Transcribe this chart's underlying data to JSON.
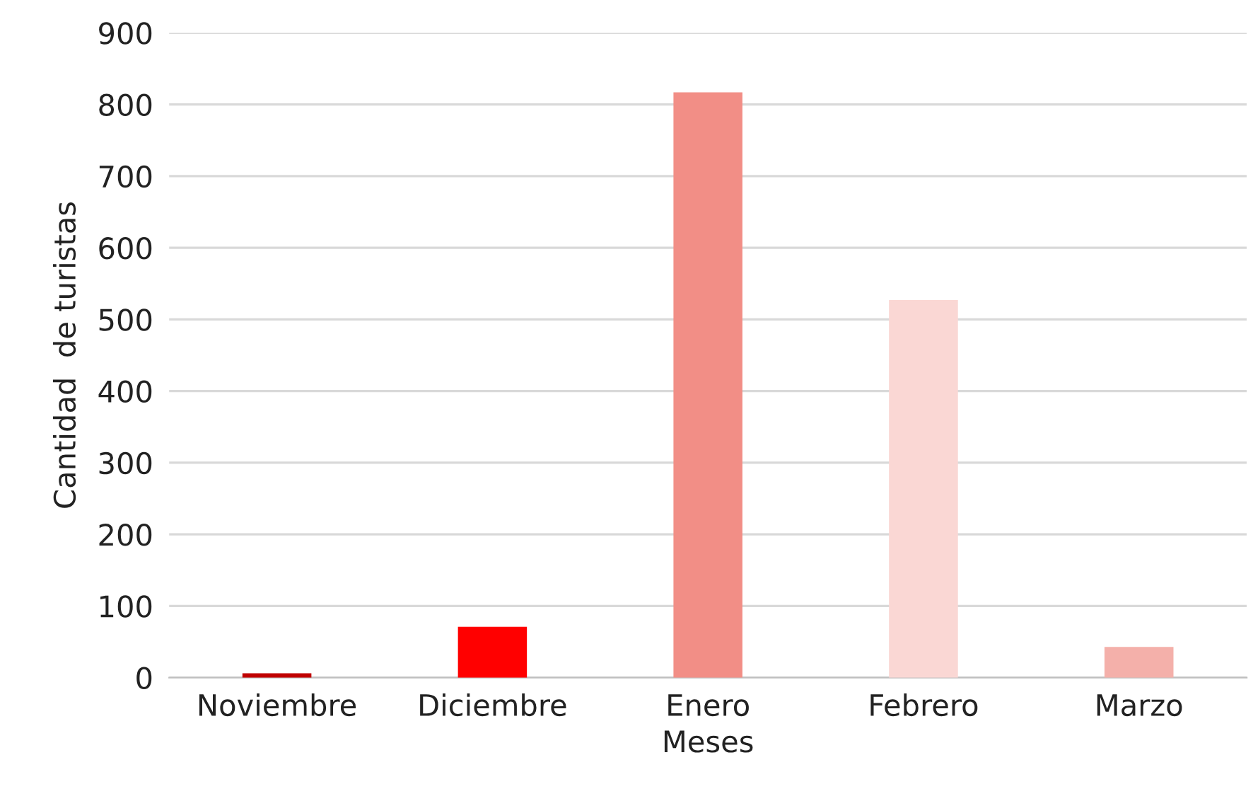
{
  "chart_data": {
    "type": "bar",
    "xlabel": "Meses",
    "ylabel": "Cantidad  de turistas",
    "categories": [
      "Noviembre",
      "Diciembre",
      "Enero",
      "Febrero",
      "Marzo"
    ],
    "values": [
      6,
      71,
      817,
      527,
      43
    ],
    "colors": [
      "#c00000",
      "#ff0000",
      "#f28e86",
      "#fad7d4",
      "#f4b0aa"
    ],
    "ylim": [
      0,
      900
    ],
    "yticks": [
      0,
      100,
      200,
      300,
      400,
      500,
      600,
      700,
      800,
      900
    ],
    "grid": "y",
    "legend": false
  }
}
